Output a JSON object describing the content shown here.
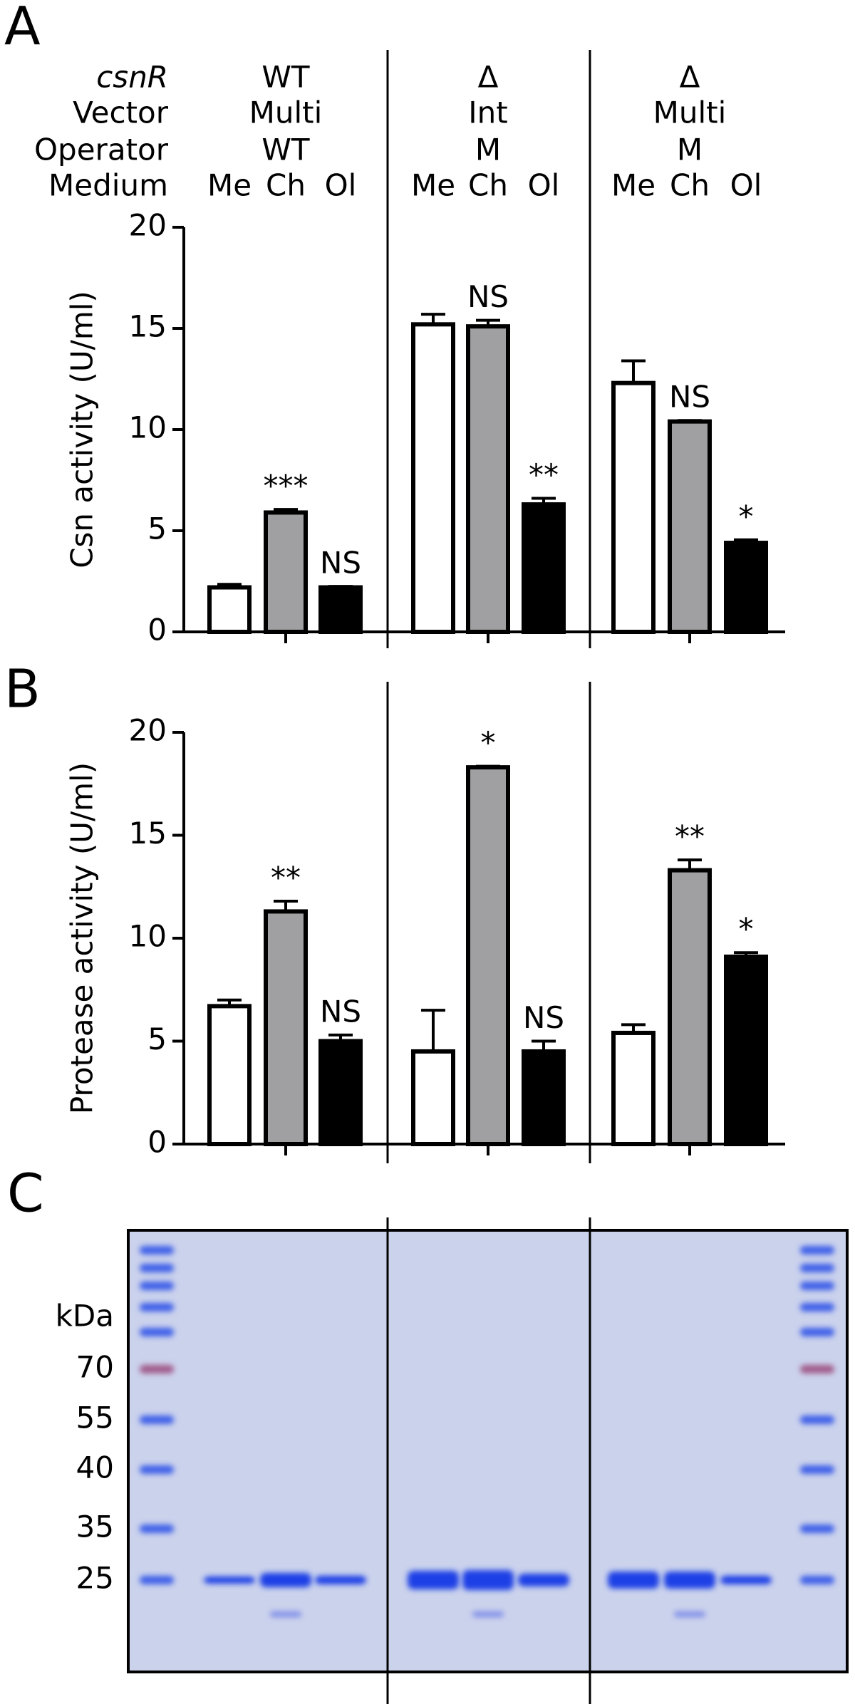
{
  "chart_data": [
    {
      "type": "bar",
      "panel_label": "A",
      "ylabel": "Csn activity (U/ml)",
      "row_labels": [
        "csnR",
        "Vector",
        "Operator",
        "Medium"
      ],
      "groups": [
        [
          "WT",
          "Multi",
          "WT"
        ],
        [
          "Δ",
          "Int",
          "M"
        ],
        [
          "Δ",
          "Multi",
          "M"
        ]
      ],
      "categories": [
        "Me",
        "Ch",
        "Ol",
        "Me",
        "Ch",
        "Ol",
        "Me",
        "Ch",
        "Ol"
      ],
      "values": [
        2.2,
        5.9,
        2.2,
        15.2,
        15.1,
        6.3,
        12.3,
        10.4,
        4.4
      ],
      "errors": [
        0.15,
        0.15,
        0.05,
        0.5,
        0.3,
        0.3,
        1.1,
        0.05,
        0.15
      ],
      "annotations": [
        null,
        "***",
        "NS",
        null,
        "NS",
        "**",
        null,
        "NS",
        "*"
      ],
      "colors": [
        "#ffffff",
        "#a0a0a3",
        "#000000"
      ],
      "ylim": [
        0,
        20
      ],
      "yticks": [
        0,
        5,
        10,
        15,
        20
      ]
    },
    {
      "type": "bar",
      "panel_label": "B",
      "ylabel": "Protease activity (U/ml)",
      "values": [
        6.7,
        11.3,
        5.0,
        4.5,
        18.3,
        4.5,
        5.4,
        13.3,
        9.1
      ],
      "errors": [
        0.3,
        0.5,
        0.3,
        2.0,
        0.05,
        0.5,
        0.4,
        0.5,
        0.2
      ],
      "annotations": [
        null,
        "**",
        "NS",
        null,
        "*",
        "NS",
        null,
        "**",
        "*"
      ],
      "colors": [
        "#ffffff",
        "#a0a0a3",
        "#000000"
      ],
      "ylim": [
        0,
        20
      ],
      "yticks": [
        0,
        5,
        10,
        15,
        20
      ]
    }
  ],
  "gel": {
    "panel_label": "C",
    "unit": "kDa",
    "markers": [
      70,
      55,
      40,
      35,
      25
    ]
  }
}
